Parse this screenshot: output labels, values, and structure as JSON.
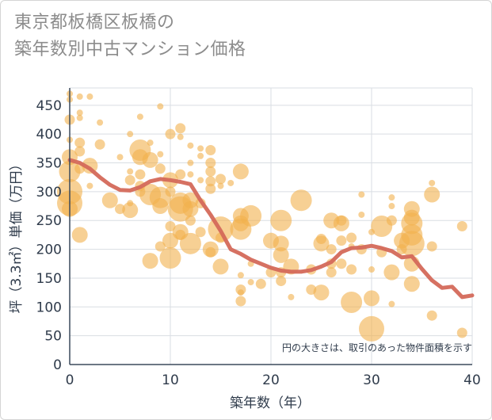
{
  "title_line1": "東京都板橋区板橋の",
  "title_line2": "築年数別中古マンション価格",
  "chart_data": {
    "type": "scatter",
    "xlabel": "築年数（年）",
    "ylabel": "坪（3.3㎡）単価（万円）",
    "xlim": [
      0,
      40
    ],
    "ylim": [
      0,
      480
    ],
    "xticks": [
      0,
      10,
      20,
      30,
      40
    ],
    "yticks": [
      0,
      50,
      100,
      150,
      200,
      250,
      300,
      350,
      400,
      450
    ],
    "grid": true,
    "note": "円の大きさは、取引のあった物件面積を示す",
    "bubble_color": "#f2b04c",
    "line_color": "#d4695a",
    "trend": {
      "x": [
        0,
        1,
        2,
        3,
        4,
        5,
        6,
        7,
        8,
        9,
        10,
        11,
        12,
        13,
        14,
        15,
        16,
        17,
        18,
        19,
        20,
        21,
        22,
        23,
        24,
        25,
        26,
        27,
        28,
        29,
        30,
        31,
        32,
        33,
        34,
        35,
        36,
        37,
        38,
        39,
        40
      ],
      "y": [
        355,
        350,
        340,
        325,
        312,
        303,
        302,
        308,
        318,
        322,
        320,
        317,
        313,
        285,
        260,
        232,
        200,
        192,
        182,
        175,
        168,
        163,
        161,
        161,
        164,
        170,
        178,
        195,
        202,
        203,
        206,
        202,
        197,
        186,
        188,
        166,
        146,
        133,
        135,
        117,
        120
      ]
    },
    "points": [
      {
        "x": 0,
        "y": 470,
        "s": 1
      },
      {
        "x": 0,
        "y": 460,
        "s": 1
      },
      {
        "x": 0,
        "y": 425,
        "s": 2
      },
      {
        "x": 1,
        "y": 465,
        "s": 1
      },
      {
        "x": 2,
        "y": 465,
        "s": 1
      },
      {
        "x": 1,
        "y": 437,
        "s": 1
      },
      {
        "x": 1,
        "y": 428,
        "s": 1
      },
      {
        "x": 3,
        "y": 420,
        "s": 1
      },
      {
        "x": 0,
        "y": 390,
        "s": 1
      },
      {
        "x": 1,
        "y": 385,
        "s": 2
      },
      {
        "x": 1,
        "y": 370,
        "s": 2
      },
      {
        "x": 3,
        "y": 382,
        "s": 2
      },
      {
        "x": 0,
        "y": 360,
        "s": 3
      },
      {
        "x": 0,
        "y": 335,
        "s": 4
      },
      {
        "x": 0,
        "y": 300,
        "s": 5
      },
      {
        "x": 0,
        "y": 280,
        "s": 5
      },
      {
        "x": 0,
        "y": 270,
        "s": 3
      },
      {
        "x": 1,
        "y": 340,
        "s": 2
      },
      {
        "x": 2,
        "y": 345,
        "s": 3
      },
      {
        "x": 1,
        "y": 225,
        "s": 3
      },
      {
        "x": 2,
        "y": 310,
        "s": 1
      },
      {
        "x": 4,
        "y": 285,
        "s": 3
      },
      {
        "x": 5,
        "y": 270,
        "s": 2
      },
      {
        "x": 5,
        "y": 360,
        "s": 1
      },
      {
        "x": 6,
        "y": 400,
        "s": 1
      },
      {
        "x": 6,
        "y": 335,
        "s": 1
      },
      {
        "x": 6,
        "y": 320,
        "s": 2
      },
      {
        "x": 6,
        "y": 280,
        "s": 1
      },
      {
        "x": 6,
        "y": 268,
        "s": 3
      },
      {
        "x": 7,
        "y": 430,
        "s": 1
      },
      {
        "x": 7,
        "y": 372,
        "s": 4
      },
      {
        "x": 7,
        "y": 360,
        "s": 3
      },
      {
        "x": 7,
        "y": 330,
        "s": 2
      },
      {
        "x": 7,
        "y": 310,
        "s": 2
      },
      {
        "x": 7,
        "y": 300,
        "s": 2
      },
      {
        "x": 8,
        "y": 385,
        "s": 1
      },
      {
        "x": 8,
        "y": 355,
        "s": 3
      },
      {
        "x": 8,
        "y": 295,
        "s": 4
      },
      {
        "x": 8,
        "y": 180,
        "s": 3
      },
      {
        "x": 9,
        "y": 448,
        "s": 1
      },
      {
        "x": 9,
        "y": 365,
        "s": 1
      },
      {
        "x": 9,
        "y": 340,
        "s": 2
      },
      {
        "x": 9,
        "y": 290,
        "s": 4
      },
      {
        "x": 9,
        "y": 275,
        "s": 3
      },
      {
        "x": 9,
        "y": 205,
        "s": 2
      },
      {
        "x": 10,
        "y": 400,
        "s": 2
      },
      {
        "x": 10,
        "y": 320,
        "s": 3
      },
      {
        "x": 10,
        "y": 300,
        "s": 2
      },
      {
        "x": 10,
        "y": 240,
        "s": 2
      },
      {
        "x": 10,
        "y": 215,
        "s": 3
      },
      {
        "x": 10,
        "y": 185,
        "s": 4
      },
      {
        "x": 11,
        "y": 410,
        "s": 2
      },
      {
        "x": 11,
        "y": 395,
        "s": 1
      },
      {
        "x": 11,
        "y": 330,
        "s": 2
      },
      {
        "x": 11,
        "y": 280,
        "s": 4
      },
      {
        "x": 11,
        "y": 270,
        "s": 5
      },
      {
        "x": 11,
        "y": 230,
        "s": 3
      },
      {
        "x": 11,
        "y": 225,
        "s": 2
      },
      {
        "x": 12,
        "y": 380,
        "s": 1
      },
      {
        "x": 12,
        "y": 350,
        "s": 1
      },
      {
        "x": 12,
        "y": 330,
        "s": 1
      },
      {
        "x": 12,
        "y": 285,
        "s": 3
      },
      {
        "x": 12,
        "y": 270,
        "s": 3
      },
      {
        "x": 12,
        "y": 250,
        "s": 2
      },
      {
        "x": 12,
        "y": 210,
        "s": 4
      },
      {
        "x": 13,
        "y": 375,
        "s": 1
      },
      {
        "x": 13,
        "y": 362,
        "s": 1
      },
      {
        "x": 13,
        "y": 320,
        "s": 1
      },
      {
        "x": 13,
        "y": 280,
        "s": 2
      },
      {
        "x": 13,
        "y": 230,
        "s": 2
      },
      {
        "x": 14,
        "y": 372,
        "s": 2
      },
      {
        "x": 14,
        "y": 350,
        "s": 2
      },
      {
        "x": 14,
        "y": 335,
        "s": 2
      },
      {
        "x": 14,
        "y": 318,
        "s": 2
      },
      {
        "x": 14,
        "y": 305,
        "s": 2
      },
      {
        "x": 14,
        "y": 200,
        "s": 3
      },
      {
        "x": 14,
        "y": 195,
        "s": 2
      },
      {
        "x": 15,
        "y": 322,
        "s": 2
      },
      {
        "x": 15,
        "y": 310,
        "s": 1
      },
      {
        "x": 15,
        "y": 235,
        "s": 5
      },
      {
        "x": 15,
        "y": 220,
        "s": 2
      },
      {
        "x": 15,
        "y": 170,
        "s": 3
      },
      {
        "x": 16,
        "y": 315,
        "s": 1
      },
      {
        "x": 17,
        "y": 335,
        "s": 3
      },
      {
        "x": 17,
        "y": 258,
        "s": 3
      },
      {
        "x": 17,
        "y": 245,
        "s": 3
      },
      {
        "x": 17,
        "y": 235,
        "s": 4
      },
      {
        "x": 17,
        "y": 155,
        "s": 1
      },
      {
        "x": 17,
        "y": 130,
        "s": 2
      },
      {
        "x": 17,
        "y": 125,
        "s": 1
      },
      {
        "x": 17,
        "y": 110,
        "s": 2
      },
      {
        "x": 18,
        "y": 258,
        "s": 4
      },
      {
        "x": 18,
        "y": 175,
        "s": 1
      },
      {
        "x": 18,
        "y": 143,
        "s": 1
      },
      {
        "x": 19,
        "y": 140,
        "s": 2
      },
      {
        "x": 20,
        "y": 215,
        "s": 3
      },
      {
        "x": 20,
        "y": 160,
        "s": 2
      },
      {
        "x": 21,
        "y": 250,
        "s": 4
      },
      {
        "x": 21,
        "y": 210,
        "s": 3
      },
      {
        "x": 21,
        "y": 190,
        "s": 3
      },
      {
        "x": 21,
        "y": 160,
        "s": 2
      },
      {
        "x": 21,
        "y": 145,
        "s": 2
      },
      {
        "x": 22,
        "y": 170,
        "s": 3
      },
      {
        "x": 22,
        "y": 117,
        "s": 1
      },
      {
        "x": 23,
        "y": 285,
        "s": 4
      },
      {
        "x": 24,
        "y": 165,
        "s": 2
      },
      {
        "x": 24,
        "y": 130,
        "s": 2
      },
      {
        "x": 25,
        "y": 218,
        "s": 2
      },
      {
        "x": 25,
        "y": 210,
        "s": 3
      },
      {
        "x": 25,
        "y": 125,
        "s": 3
      },
      {
        "x": 26,
        "y": 250,
        "s": 3
      },
      {
        "x": 26,
        "y": 200,
        "s": 2
      },
      {
        "x": 26,
        "y": 175,
        "s": 2
      },
      {
        "x": 26,
        "y": 160,
        "s": 2
      },
      {
        "x": 27,
        "y": 250,
        "s": 2
      },
      {
        "x": 27,
        "y": 245,
        "s": 3
      },
      {
        "x": 27,
        "y": 215,
        "s": 2
      },
      {
        "x": 27,
        "y": 175,
        "s": 2
      },
      {
        "x": 28,
        "y": 220,
        "s": 2
      },
      {
        "x": 28,
        "y": 205,
        "s": 1
      },
      {
        "x": 28,
        "y": 165,
        "s": 2
      },
      {
        "x": 28,
        "y": 108,
        "s": 4
      },
      {
        "x": 29,
        "y": 295,
        "s": 1
      },
      {
        "x": 29,
        "y": 260,
        "s": 1
      },
      {
        "x": 29,
        "y": 200,
        "s": 2
      },
      {
        "x": 30,
        "y": 230,
        "s": 1
      },
      {
        "x": 30,
        "y": 165,
        "s": 1
      },
      {
        "x": 30,
        "y": 115,
        "s": 3
      },
      {
        "x": 30,
        "y": 62,
        "s": 5
      },
      {
        "x": 31,
        "y": 240,
        "s": 4
      },
      {
        "x": 31,
        "y": 195,
        "s": 2
      },
      {
        "x": 32,
        "y": 290,
        "s": 1
      },
      {
        "x": 32,
        "y": 275,
        "s": 1
      },
      {
        "x": 32,
        "y": 250,
        "s": 2
      },
      {
        "x": 32,
        "y": 160,
        "s": 3
      },
      {
        "x": 32,
        "y": 105,
        "s": 1
      },
      {
        "x": 33,
        "y": 215,
        "s": 3
      },
      {
        "x": 33,
        "y": 200,
        "s": 2
      },
      {
        "x": 34,
        "y": 270,
        "s": 3
      },
      {
        "x": 34,
        "y": 255,
        "s": 3
      },
      {
        "x": 34,
        "y": 245,
        "s": 4
      },
      {
        "x": 34,
        "y": 225,
        "s": 4
      },
      {
        "x": 34,
        "y": 210,
        "s": 5
      },
      {
        "x": 34,
        "y": 175,
        "s": 3
      },
      {
        "x": 34,
        "y": 140,
        "s": 3
      },
      {
        "x": 36,
        "y": 315,
        "s": 1
      },
      {
        "x": 36,
        "y": 295,
        "s": 3
      },
      {
        "x": 36,
        "y": 205,
        "s": 2
      },
      {
        "x": 36,
        "y": 85,
        "s": 2
      },
      {
        "x": 39,
        "y": 240,
        "s": 2
      },
      {
        "x": 39,
        "y": 55,
        "s": 2
      }
    ]
  }
}
